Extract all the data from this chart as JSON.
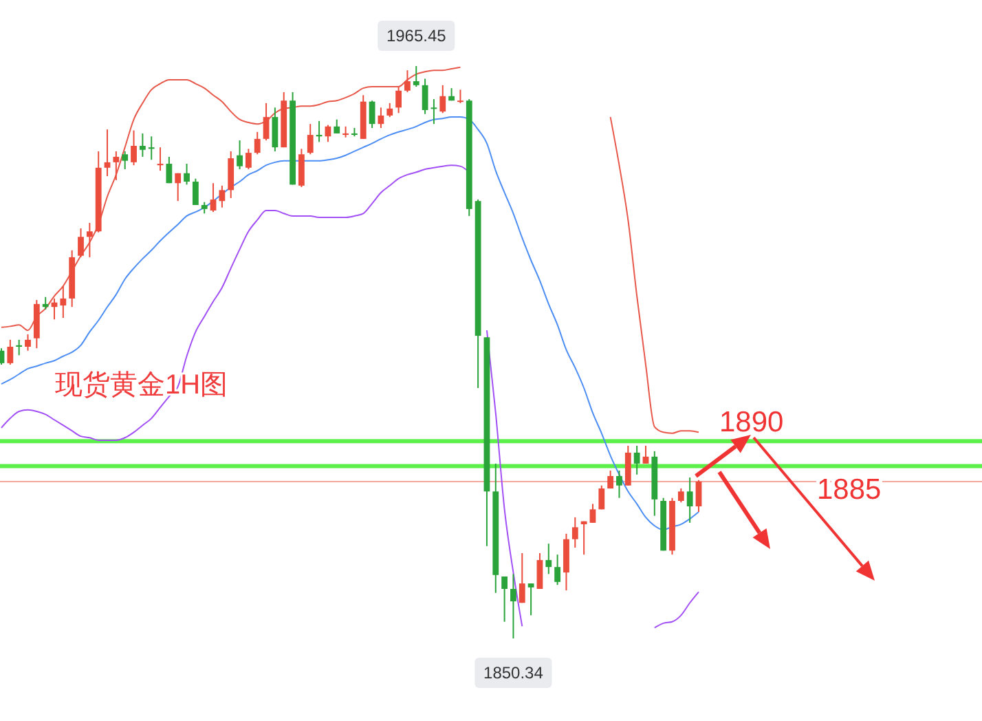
{
  "chart_data": {
    "type": "candlestick",
    "title": "现货黄金1H图",
    "categories": [
      null,
      null,
      null,
      null,
      null,
      null,
      null,
      null,
      null,
      null,
      null,
      null,
      null,
      null,
      null,
      null,
      null,
      null,
      null,
      null,
      null,
      null,
      null,
      null,
      null,
      null,
      null,
      null,
      null,
      null,
      null,
      null,
      null,
      null,
      null,
      null,
      null,
      null,
      null,
      null,
      null,
      null,
      null,
      null,
      null,
      null,
      null,
      null,
      null,
      null,
      null,
      null,
      null,
      null,
      null,
      null,
      null,
      null,
      null,
      null,
      null,
      null,
      null,
      null,
      null,
      null,
      null,
      null,
      null,
      null,
      null,
      null,
      null,
      null,
      null,
      null,
      null,
      null,
      null,
      null
    ],
    "ohlc": [
      [
        1908.2,
        1908.7,
        1905.4,
        1905.7
      ],
      [
        1905.7,
        1910.4,
        1905.4,
        1909.0
      ],
      [
        1909.3,
        1910.4,
        1907.3,
        1909.0
      ],
      [
        1909.0,
        1911.5,
        1908.2,
        1910.4
      ],
      [
        1910.7,
        1918.4,
        1908.7,
        1917.6
      ],
      [
        1917.6,
        1919.0,
        1916.5,
        1917.0
      ],
      [
        1917.0,
        1918.7,
        1914.5,
        1917.9
      ],
      [
        1917.3,
        1921.2,
        1914.8,
        1918.7
      ],
      [
        1918.7,
        1928.4,
        1917.0,
        1927.0
      ],
      [
        1927.3,
        1932.8,
        1927.0,
        1931.1
      ],
      [
        1931.1,
        1933.9,
        1927.0,
        1932.2
      ],
      [
        1932.2,
        1948.3,
        1932.0,
        1945.0
      ],
      [
        1945.0,
        1952.7,
        1943.3,
        1946.1
      ],
      [
        1946.1,
        1948.3,
        1942.5,
        1947.2
      ],
      [
        1947.7,
        1948.3,
        1944.7,
        1946.4
      ],
      [
        1946.1,
        1952.5,
        1945.5,
        1949.4
      ],
      [
        1949.4,
        1951.9,
        1947.2,
        1948.6
      ],
      [
        1949.1,
        1951.3,
        1946.6,
        1948.8
      ],
      [
        1945.5,
        1949.1,
        1944.4,
        1945.8
      ],
      [
        1945.8,
        1947.2,
        1941.9,
        1941.9
      ],
      [
        1941.9,
        1943.9,
        1938.3,
        1943.9
      ],
      [
        1943.9,
        1945.8,
        1941.6,
        1942.2
      ],
      [
        1942.2,
        1942.8,
        1937.5,
        1937.5
      ],
      [
        1937.5,
        1938.1,
        1935.8,
        1936.7
      ],
      [
        1936.4,
        1941.9,
        1936.1,
        1938.6
      ],
      [
        1938.3,
        1941.4,
        1937.0,
        1940.5
      ],
      [
        1940.5,
        1948.3,
        1938.9,
        1946.9
      ],
      [
        1947.5,
        1950.5,
        1944.7,
        1945.3
      ],
      [
        1945.0,
        1948.8,
        1944.7,
        1948.0
      ],
      [
        1948.0,
        1952.2,
        1947.7,
        1950.8
      ],
      [
        1950.8,
        1958.0,
        1950.5,
        1955.2
      ],
      [
        1955.2,
        1957.1,
        1948.3,
        1949.1
      ],
      [
        1949.1,
        1960.2,
        1949.1,
        1958.5
      ],
      [
        1958.5,
        1960.2,
        1941.6,
        1941.6
      ],
      [
        1941.4,
        1948.8,
        1941.1,
        1947.7
      ],
      [
        1948.0,
        1953.8,
        1947.7,
        1951.6
      ],
      [
        1951.6,
        1954.4,
        1950.2,
        1951.3
      ],
      [
        1951.3,
        1953.6,
        1950.2,
        1953.3
      ],
      [
        1953.3,
        1954.7,
        1951.9,
        1951.9
      ],
      [
        1951.6,
        1953.3,
        1951.1,
        1951.9
      ],
      [
        1951.9,
        1953.0,
        1951.3,
        1951.6
      ],
      [
        1950.8,
        1959.6,
        1950.8,
        1958.3
      ],
      [
        1958.3,
        1958.5,
        1953.0,
        1953.8
      ],
      [
        1953.8,
        1957.1,
        1953.0,
        1955.5
      ],
      [
        1955.5,
        1958.0,
        1955.2,
        1956.9
      ],
      [
        1957.1,
        1961.3,
        1956.0,
        1960.5
      ],
      [
        1960.5,
        1964.6,
        1960.2,
        1962.4
      ],
      [
        1962.4,
        1965.45,
        1961.3,
        1961.6
      ],
      [
        1961.6,
        1962.9,
        1955.8,
        1956.6
      ],
      [
        1957.1,
        1958.8,
        1953.8,
        1956.9
      ],
      [
        1956.3,
        1961.6,
        1956.0,
        1959.4
      ],
      [
        1959.4,
        1961.0,
        1958.5,
        1958.5
      ],
      [
        1958.3,
        1960.7,
        1958.0,
        1958.5
      ],
      [
        1958.5,
        1958.8,
        1935.3,
        1936.7
      ],
      [
        1938.3,
        1938.6,
        1900.7,
        1911.2
      ],
      [
        1910.9,
        1910.9,
        1868.9,
        1879.9
      ],
      [
        1879.9,
        1885.5,
        1859.5,
        1863.1
      ],
      [
        1862.8,
        1862.8,
        1853.7,
        1860.3
      ],
      [
        1860.3,
        1863.3,
        1850.34,
        1857.8
      ],
      [
        1857.5,
        1867.5,
        1857.5,
        1861.4
      ],
      [
        1861.4,
        1861.4,
        1855.0,
        1860.6
      ],
      [
        1860.3,
        1867.5,
        1860.3,
        1866.1
      ],
      [
        1866.1,
        1869.4,
        1863.3,
        1864.7
      ],
      [
        1864.7,
        1867.2,
        1861.1,
        1861.7
      ],
      [
        1863.6,
        1871.4,
        1860.0,
        1870.3
      ],
      [
        1870.3,
        1874.7,
        1868.6,
        1872.7
      ],
      [
        1873.3,
        1873.9,
        1867.2,
        1873.9
      ],
      [
        1873.6,
        1877.4,
        1873.6,
        1876.3
      ],
      [
        1876.3,
        1881.1,
        1876.3,
        1880.5
      ],
      [
        1880.5,
        1884.1,
        1880.5,
        1883.0
      ],
      [
        1883.0,
        1884.1,
        1878.6,
        1881.1
      ],
      [
        1881.1,
        1889.1,
        1881.1,
        1887.7
      ],
      [
        1887.7,
        1889.1,
        1883.3,
        1885.5
      ],
      [
        1885.5,
        1889.1,
        1885.5,
        1886.9
      ],
      [
        1886.9,
        1888.0,
        1875.0,
        1878.3
      ],
      [
        1878.0,
        1878.6,
        1868.0,
        1868.0
      ],
      [
        1868.0,
        1878.6,
        1867.2,
        1878.0
      ],
      [
        1878.0,
        1880.5,
        1877.7,
        1879.9
      ],
      [
        1879.9,
        1882.7,
        1873.6,
        1876.9
      ],
      [
        1876.9,
        1882.2,
        1875.8,
        1881.9
      ]
    ],
    "colors": [
      "#2aa43a",
      "#eb4d3d",
      "#2aa43a",
      "#eb4d3d",
      "#eb4d3d",
      "#2aa43a",
      "#eb4d3d",
      "#eb4d3d",
      "#eb4d3d",
      "#eb4d3d",
      "#eb4d3d",
      "#eb4d3d",
      "#eb4d3d",
      "#eb4d3d",
      "#2aa43a",
      "#eb4d3d",
      "#2aa43a",
      "#2aa43a",
      "#eb4d3d",
      "#2aa43a",
      "#eb4d3d",
      "#2aa43a",
      "#2aa43a",
      "#2aa43a",
      "#eb4d3d",
      "#eb4d3d",
      "#eb4d3d",
      "#2aa43a",
      "#eb4d3d",
      "#eb4d3d",
      "#eb4d3d",
      "#2aa43a",
      "#eb4d3d",
      "#2aa43a",
      "#eb4d3d",
      "#eb4d3d",
      "#2aa43a",
      "#eb4d3d",
      "#2aa43a",
      "#eb4d3d",
      "#2aa43a",
      "#eb4d3d",
      "#2aa43a",
      "#eb4d3d",
      "#eb4d3d",
      "#eb4d3d",
      "#eb4d3d",
      "#2aa43a",
      "#2aa43a",
      "#2aa43a",
      "#eb4d3d",
      "#2aa43a",
      "#eb4d3d",
      "#2aa43a",
      "#2aa43a",
      "#2aa43a",
      "#2aa43a",
      "#2aa43a",
      "#2aa43a",
      "#eb4d3d",
      "#2aa43a",
      "#eb4d3d",
      "#2aa43a",
      "#2aa43a",
      "#eb4d3d",
      "#eb4d3d",
      "#eb4d3d",
      "#eb4d3d",
      "#eb4d3d",
      "#eb4d3d",
      "#2aa43a",
      "#eb4d3d",
      "#2aa43a",
      "#eb4d3d",
      "#2aa43a",
      "#2aa43a",
      "#eb4d3d",
      "#eb4d3d",
      "#2aa43a",
      "#eb4d3d"
    ],
    "series": [
      {
        "type": "line",
        "color": "#e8584a",
        "values": [
          1912.9,
          1913.1,
          1913.4,
          1912.3,
          1915.1,
          1916.7,
          1919.2,
          1921.2,
          1924.2,
          1927.3,
          1930.0,
          1933.6,
          1939.2,
          1943.6,
          1949.1,
          1954.7,
          1958.0,
          1960.7,
          1961.9,
          1962.7,
          1962.7,
          1962.7,
          1961.9,
          1961.0,
          1959.6,
          1958.3,
          1956.3,
          1954.7,
          1954.1,
          1953.8,
          1954.4,
          1956.0,
          1956.9,
          1957.1,
          1957.4,
          1957.4,
          1957.7,
          1958.3,
          1958.5,
          1959.1,
          1959.9,
          1961.0,
          1961.3,
          1961.3,
          1961.3,
          1961.3,
          1962.7,
          1963.8,
          1964.3,
          1964.6,
          1964.6,
          1964.9,
          1965.2,
          null,
          null,
          null,
          null,
          null,
          null,
          null,
          null,
          null,
          null,
          null,
          null,
          null,
          null,
          null,
          null,
          1955.2,
          1945.5,
          1934.5,
          1919.2,
          1905.4,
          1892.9,
          1891.8,
          1891.6,
          1892.1,
          1892.1,
          1891.8
        ]
      },
      {
        "type": "line",
        "color": "#4d8ef5",
        "values": [
          1901.5,
          1902.4,
          1903.5,
          1904.6,
          1905.1,
          1905.7,
          1906.2,
          1907.1,
          1907.9,
          1909.3,
          1912.0,
          1914.3,
          1917.0,
          1919.5,
          1922.6,
          1924.8,
          1926.7,
          1928.4,
          1930.3,
          1932.0,
          1933.6,
          1935.3,
          1936.1,
          1937.0,
          1938.3,
          1939.7,
          1941.1,
          1942.2,
          1943.6,
          1944.4,
          1945.5,
          1946.1,
          1946.4,
          1946.4,
          1946.4,
          1946.4,
          1946.4,
          1946.6,
          1946.9,
          1947.5,
          1948.3,
          1949.1,
          1949.9,
          1950.8,
          1951.6,
          1952.2,
          1952.7,
          1953.3,
          1954.1,
          1954.7,
          1954.9,
          1955.2,
          1955.2,
          1954.7,
          1952.7,
          1949.9,
          1944.4,
          1940.0,
          1935.8,
          1930.9,
          1926.4,
          1922.3,
          1917.6,
          1913.4,
          1908.4,
          1904.8,
          1900.7,
          1895.7,
          1891.6,
          1887.1,
          1883.3,
          1879.9,
          1877.4,
          1874.7,
          1873.0,
          1872.2,
          1872.8,
          1873.3,
          1874.4,
          1875.8
        ]
      },
      {
        "type": "line",
        "color": "#a250f5",
        "values": [
          1892.7,
          1894.6,
          1896.0,
          1896.3,
          1896.0,
          1895.4,
          1894.3,
          1893.2,
          1892.1,
          1891.0,
          1890.7,
          1890.2,
          1890.2,
          1890.2,
          1890.7,
          1891.8,
          1893.2,
          1894.6,
          1896.8,
          1899.0,
          1901.0,
          1907.1,
          1912.0,
          1915.1,
          1918.1,
          1920.9,
          1924.8,
          1928.6,
          1932.2,
          1934.5,
          1936.4,
          1936.4,
          1935.8,
          1935.3,
          1935.3,
          1935.3,
          1935.0,
          1935.0,
          1935.0,
          1935.0,
          1935.3,
          1935.8,
          1937.8,
          1940.0,
          1941.4,
          1942.8,
          1943.6,
          1944.1,
          1944.7,
          1945.0,
          1945.3,
          1945.5,
          1945.3,
          1944.1,
          null,
          1912.3,
          1895.7,
          1876.3,
          1863.6,
          1852.8,
          null,
          null,
          null,
          null,
          null,
          null,
          null,
          null,
          null,
          null,
          null,
          null,
          null,
          null,
          1852.5,
          1853.4,
          1853.7,
          1855.0,
          1857.5,
          1859.7
        ]
      }
    ],
    "ref_lines": [
      {
        "axis": "y",
        "value": 1890,
        "label": "1890",
        "color": "#5ef04a"
      },
      {
        "axis": "y",
        "value": 1885,
        "label": "1885",
        "color": "#5ef04a"
      },
      {
        "axis": "y",
        "value": 1881.9,
        "color": "#f4a8a0"
      }
    ],
    "annotations": [
      {
        "text": "1965.45",
        "y": 1965.45
      },
      {
        "text": "1850.34",
        "y": 1850.34
      }
    ]
  }
}
